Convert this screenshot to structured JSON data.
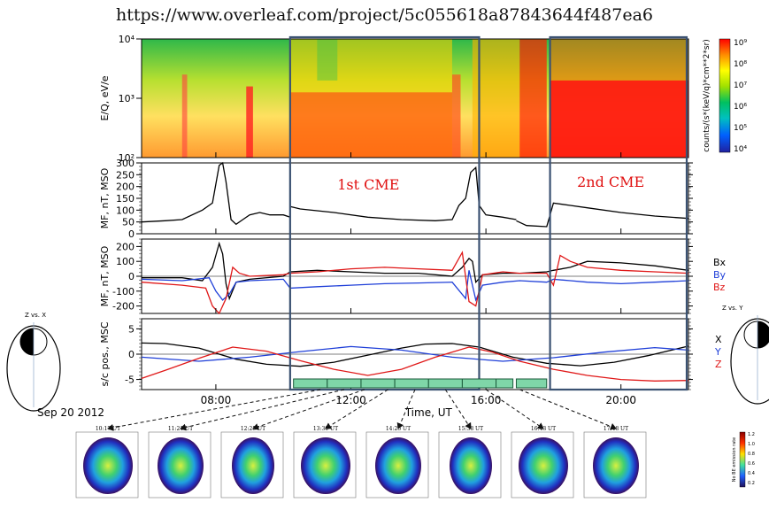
{
  "url_text": "https://www.overleaf.com/project/5c055618a87843644f487ea6",
  "date_label": "Sep 20 2012",
  "colors": {
    "bx": "#000000",
    "by": "#1f3fd8",
    "bz": "#e01818",
    "cme_box": "#3b5272",
    "cme_label": "#e01010",
    "orbit_bar": "#7fd6a8"
  },
  "chart_data": [
    {
      "type": "heatmap",
      "ylabel": "E/Q, eV/e",
      "yscale": "log",
      "ylim": [
        100,
        10000
      ],
      "yticks": [
        "10²",
        "10³",
        "10⁴"
      ],
      "colorbar_label": "counts/(s*(keV/q)*cm**2*sr)",
      "colorbar_ticks": [
        "10⁹",
        "10⁸",
        "10⁷",
        "10⁶",
        "10⁵",
        "10⁴"
      ],
      "colorbar_colors": [
        "#ff0000",
        "#ff8c00",
        "#ffff00",
        "#9fe000",
        "#00c060",
        "#00c0c0",
        "#0060ff",
        "#2020a0"
      ]
    },
    {
      "type": "line",
      "ylabel": "MF, nT, MSO",
      "ylim": [
        0,
        300
      ],
      "yticks": [
        "0",
        "50",
        "100",
        "150",
        "200",
        "250",
        "300"
      ],
      "annotations": [
        "1st CME",
        "2nd CME"
      ],
      "series": [
        {
          "x": [
            5.8,
            6.5,
            7.0,
            7.6,
            7.9,
            8.0,
            8.1,
            8.2,
            8.3,
            8.45,
            8.6,
            8.8,
            9.0,
            9.3,
            9.6,
            10.0,
            10.2
          ],
          "y": [
            50,
            55,
            60,
            100,
            130,
            210,
            290,
            300,
            220,
            60,
            40,
            60,
            80,
            90,
            80,
            80,
            70
          ]
        },
        {
          "x": [
            10.2,
            10.5,
            11.5,
            12.5,
            13.5,
            14.5,
            15.0,
            15.2,
            15.4,
            15.55,
            15.7,
            15.8,
            16.0,
            16.5,
            16.9
          ],
          "y": [
            115,
            105,
            90,
            70,
            60,
            55,
            60,
            120,
            150,
            260,
            280,
            120,
            80,
            70,
            60
          ]
        },
        {
          "x": [
            16.9,
            17.2,
            17.8,
            17.9,
            18.0,
            18.5,
            19.0,
            20.0,
            21.0,
            22.0
          ],
          "y": [
            55,
            35,
            30,
            80,
            130,
            120,
            110,
            90,
            75,
            65
          ]
        }
      ]
    },
    {
      "type": "line",
      "ylabel": "MF, nT, MSO",
      "ylim": [
        -250,
        250
      ],
      "yticks": [
        "-200",
        "-100",
        "0",
        "100",
        "200"
      ],
      "legend": [
        "Bx",
        "By",
        "Bz"
      ],
      "series": [
        {
          "name": "Bx",
          "x": [
            5.8,
            7.0,
            7.6,
            7.9,
            8.0,
            8.1,
            8.2,
            8.3,
            8.4,
            8.6,
            9.0,
            10.0,
            10.2,
            11.0,
            12.0,
            13.0,
            14.0,
            15.0,
            15.3,
            15.5,
            15.6,
            15.7,
            15.9,
            16.5,
            17.0,
            17.8,
            18.0,
            18.5,
            19.0,
            20.0,
            21.0,
            22.0
          ],
          "y": [
            -10,
            -10,
            -30,
            60,
            140,
            220,
            150,
            -50,
            -150,
            -40,
            -20,
            0,
            30,
            40,
            30,
            20,
            20,
            0,
            60,
            120,
            100,
            -40,
            10,
            20,
            20,
            30,
            40,
            60,
            100,
            90,
            70,
            40
          ]
        },
        {
          "name": "By",
          "x": [
            5.8,
            7.0,
            7.8,
            8.0,
            8.2,
            8.4,
            8.6,
            9.0,
            10.0,
            10.2,
            11.0,
            12.0,
            13.0,
            14.0,
            15.0,
            15.4,
            15.5,
            15.7,
            15.9,
            16.5,
            17.0,
            17.8,
            18.0,
            18.5,
            19.0,
            20.0,
            21.0,
            22.0
          ],
          "y": [
            -20,
            -30,
            -10,
            -100,
            -160,
            -120,
            -40,
            -30,
            -20,
            -80,
            -70,
            -60,
            -50,
            -45,
            -40,
            -150,
            40,
            -160,
            -60,
            -40,
            -30,
            -40,
            -20,
            -30,
            -40,
            -50,
            -40,
            -30
          ]
        },
        {
          "name": "Bz",
          "x": [
            5.8,
            7.0,
            7.7,
            7.9,
            8.1,
            8.3,
            8.5,
            8.7,
            9.0,
            10.0,
            10.2,
            11.0,
            12.0,
            13.0,
            14.0,
            15.0,
            15.3,
            15.5,
            15.7,
            15.9,
            16.5,
            17.0,
            17.8,
            18.0,
            18.2,
            18.5,
            19.0,
            20.0,
            21.0,
            22.0
          ],
          "y": [
            -40,
            -60,
            -80,
            -200,
            -250,
            -150,
            60,
            20,
            0,
            10,
            20,
            30,
            50,
            60,
            50,
            40,
            160,
            -170,
            -200,
            10,
            30,
            20,
            20,
            -60,
            140,
            100,
            60,
            40,
            30,
            20
          ]
        }
      ]
    },
    {
      "type": "line",
      "ylabel": "s/c pos., MSC",
      "ylim": [
        -7,
        7
      ],
      "yticks": [
        "-5",
        "0",
        "5"
      ],
      "legend": [
        "X",
        "Y",
        "Z"
      ],
      "series": [
        {
          "name": "X",
          "x": [
            5.8,
            6.5,
            7.5,
            8.6,
            9.5,
            10.5,
            11.5,
            12.5,
            13.5,
            14.2,
            15.0,
            15.8,
            16.8,
            17.8,
            18.8,
            19.8,
            20.8,
            22.0
          ],
          "y": [
            2.2,
            2.1,
            1.2,
            -1.0,
            -2.0,
            -2.4,
            -1.6,
            -0.2,
            1.2,
            2.0,
            2.1,
            1.4,
            -0.6,
            -1.8,
            -2.3,
            -1.6,
            -0.3,
            1.6
          ]
        },
        {
          "name": "Y",
          "x": [
            5.8,
            7.5,
            9.0,
            10.5,
            12.0,
            13.5,
            15.0,
            16.5,
            18.0,
            19.5,
            21.0,
            22.0
          ],
          "y": [
            -0.6,
            -1.4,
            -0.6,
            0.5,
            1.5,
            0.8,
            -0.6,
            -1.4,
            -0.7,
            0.4,
            1.3,
            0.8
          ]
        },
        {
          "name": "Z",
          "x": [
            5.8,
            6.5,
            7.5,
            8.5,
            9.5,
            10.5,
            11.5,
            12.5,
            13.5,
            14.5,
            15.5,
            16.2,
            17.0,
            18.0,
            19.0,
            20.0,
            21.0,
            22.0
          ],
          "y": [
            -4.8,
            -3.2,
            -0.8,
            1.4,
            0.6,
            -1.3,
            -3.0,
            -4.2,
            -3.0,
            -0.6,
            1.4,
            0.4,
            -1.4,
            -3.0,
            -4.2,
            -5.0,
            -5.3,
            -5.2
          ]
        }
      ]
    }
  ],
  "x_axis": {
    "label": "Time, UT",
    "range": [
      5.8,
      22.0
    ],
    "tick_hours": [
      8,
      12,
      16,
      20
    ],
    "tick_labels": [
      "08:00",
      "12:00",
      "16:00",
      "20:00"
    ]
  },
  "orbit_diagrams": [
    {
      "label": "Z vs. X"
    },
    {
      "label": "Z vs. Y"
    }
  ],
  "snapshots": [
    {
      "time": "10:17 UT",
      "link_hour": 11.1
    },
    {
      "time": "11:21 UT",
      "link_hour": 11.8
    },
    {
      "time": "12:25 UT",
      "link_hour": 12.4
    },
    {
      "time": "13:30 UT",
      "link_hour": 13.1
    },
    {
      "time": "14:25 UT",
      "link_hour": 13.9
    },
    {
      "time": "15:38 UT",
      "link_hour": 14.8
    },
    {
      "time": "16:43 UT",
      "link_hour": 16.0
    },
    {
      "time": "17:48 UT",
      "link_hour": 17.0
    }
  ],
  "snapshot_colorbar_label": "No BE emission rate",
  "snapshot_colorbar_ticks": [
    "1.2",
    "1.0",
    "0.8",
    "0.6",
    "0.4",
    "0.2"
  ]
}
